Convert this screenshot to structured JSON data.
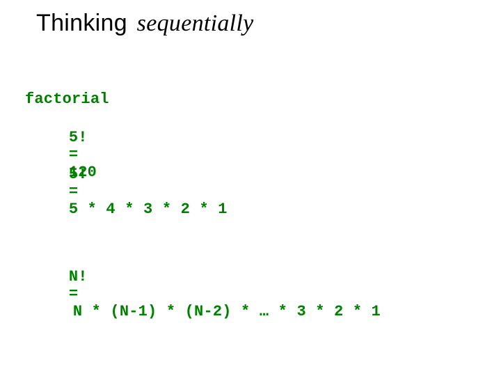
{
  "title": {
    "word1": "Thinking",
    "word2": "sequentially"
  },
  "colors": {
    "code": "#008000",
    "background": "#ffffff",
    "title": "#000000"
  },
  "typography": {
    "title_fontsize": 34,
    "code_fontsize": 22,
    "code_fontfamily": "Courier New",
    "code_fontweight": "bold",
    "title_word1_fontfamily": "Arial",
    "title_word2_fontfamily": "Times New Roman",
    "title_word2_style": "italic"
  },
  "label": "factorial",
  "rows": [
    {
      "lhs": "5!",
      "eq": "=",
      "rhs": "120"
    },
    {
      "lhs": "5!",
      "eq": "=",
      "rhs": "5 * 4 * 3 * 2 * 1"
    },
    {
      "lhs": "N!",
      "eq": "=",
      "rhs": "N * (N-1) * (N-2) * … * 3 * 2 * 1"
    }
  ]
}
